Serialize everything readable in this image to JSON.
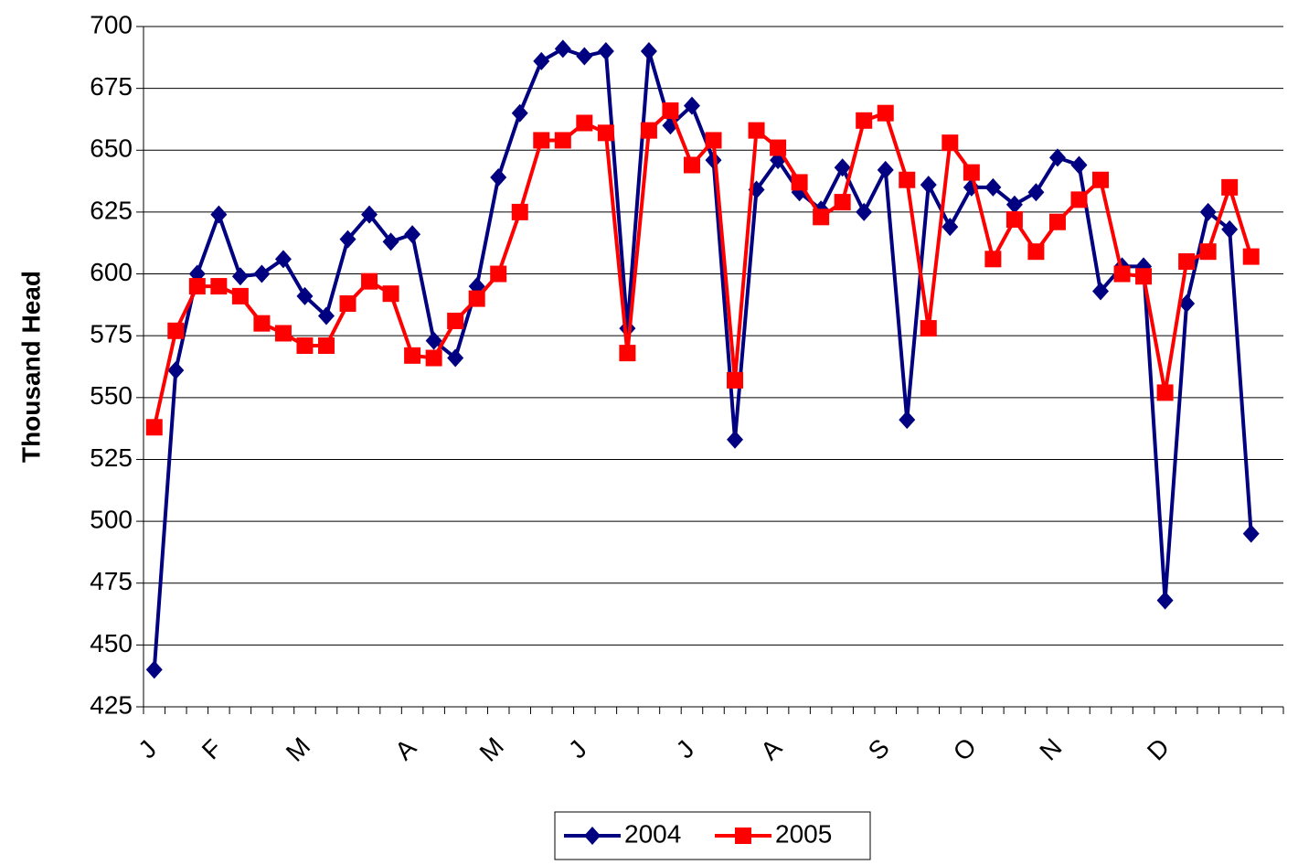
{
  "chart_data": {
    "type": "line",
    "y_label": "Thousand Head",
    "categories": [
      "J",
      null,
      null,
      "F",
      null,
      null,
      null,
      "M",
      null,
      null,
      null,
      null,
      "A",
      null,
      null,
      null,
      "M",
      null,
      null,
      null,
      "J",
      null,
      null,
      null,
      null,
      "J",
      null,
      null,
      null,
      "A",
      null,
      null,
      null,
      null,
      "S",
      null,
      null,
      null,
      "O",
      null,
      null,
      null,
      "N",
      null,
      null,
      null,
      null,
      "D",
      null,
      null,
      null,
      null,
      null
    ],
    "series": [
      {
        "name": "2004",
        "color": "#000080",
        "marker": "diamond",
        "values": [
          440,
          561,
          600,
          624,
          599,
          600,
          606,
          591,
          583,
          614,
          624,
          613,
          616,
          573,
          566,
          595,
          639,
          665,
          686,
          691,
          688,
          690,
          578,
          690,
          660,
          668,
          646,
          533,
          634,
          646,
          633,
          626,
          643,
          625,
          642,
          541,
          636,
          619,
          635,
          635,
          628,
          633,
          647,
          644,
          593,
          603,
          603,
          468,
          588,
          625,
          618,
          495,
          null
        ]
      },
      {
        "name": "2005",
        "color": "#ff0000",
        "marker": "square",
        "values": [
          538,
          577,
          595,
          595,
          591,
          580,
          576,
          571,
          571,
          588,
          597,
          592,
          567,
          566,
          581,
          590,
          600,
          625,
          654,
          654,
          661,
          657,
          568,
          658,
          666,
          644,
          654,
          557,
          658,
          651,
          637,
          623,
          629,
          662,
          665,
          638,
          578,
          653,
          641,
          606,
          622,
          609,
          621,
          630,
          638,
          600,
          599,
          552,
          605,
          609,
          635,
          607,
          null
        ]
      }
    ],
    "ylim": [
      425,
      700
    ],
    "yticks": [
      425,
      450,
      475,
      500,
      525,
      550,
      575,
      600,
      625,
      650,
      675,
      700
    ],
    "grid": true,
    "legend": "bottom"
  }
}
